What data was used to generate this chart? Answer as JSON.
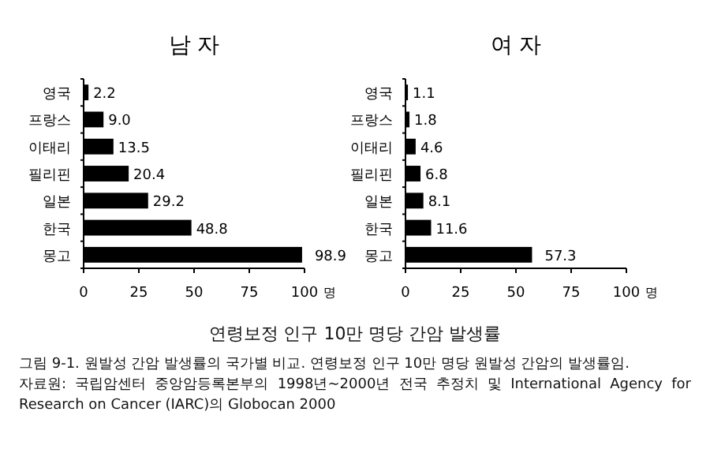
{
  "chart_data": [
    {
      "type": "bar",
      "orientation": "horizontal",
      "title": "남 자",
      "xlabel": "명",
      "categories": [
        "영국",
        "프랑스",
        "이태리",
        "필리핀",
        "일본",
        "한국",
        "몽고"
      ],
      "series": [
        {
          "color": "#000000",
          "values": [
            2.2,
            9.0,
            13.5,
            20.4,
            29.2,
            48.8,
            98.9
          ],
          "value_labels": [
            "2.2",
            "9.0",
            "13.5",
            "20.4",
            "29.2",
            "48.8",
            "98.9"
          ]
        }
      ],
      "xlim": [
        0,
        100
      ],
      "xticks": [
        0,
        25,
        50,
        75,
        100
      ],
      "grid": false,
      "annotations": [
        "연령보정 인구 10만 명당 간암 발생률",
        "그림 9-1. 원발성 간암 발생률의 국가별 비교. 연령보정 인구 10만 명당 원발성 간암의 발생률임.",
        "자료원: 국립암센터 중앙암등록본부의 1998년~2000년 전국 추정치 및 International Agency for Research on Cancer (IARC)의 Globocan 2000"
      ]
    },
    {
      "type": "bar",
      "orientation": "horizontal",
      "title": "여 자",
      "xlabel": "명",
      "categories": [
        "영국",
        "프랑스",
        "이태리",
        "필리핀",
        "일본",
        "한국",
        "몽고"
      ],
      "series": [
        {
          "color": "#000000",
          "values": [
            1.1,
            1.8,
            4.6,
            6.8,
            8.1,
            11.6,
            57.3
          ],
          "value_labels": [
            "1.1",
            "1.8",
            "4.6",
            "6.8",
            "8.1",
            "11.6",
            "57.3"
          ]
        }
      ],
      "xlim": [
        0,
        100
      ],
      "xticks": [
        0,
        25,
        50,
        75,
        100
      ],
      "grid": false
    }
  ]
}
